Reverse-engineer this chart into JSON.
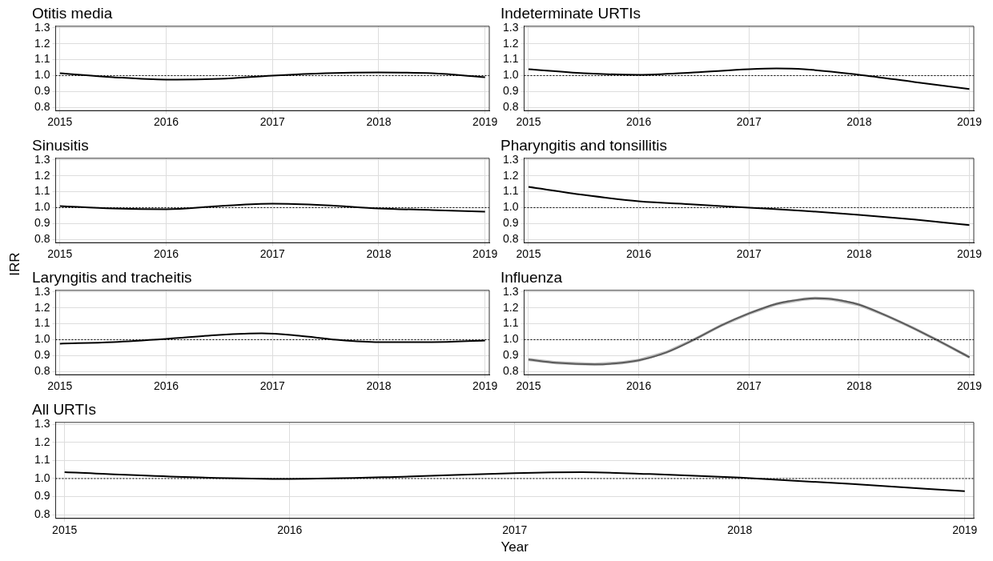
{
  "chart_data": [
    {
      "type": "line",
      "title": "Otitis media",
      "xlim": [
        2014.96,
        2019.04
      ],
      "ylim": [
        0.78,
        1.31
      ],
      "xticks": [
        2015,
        2016,
        2017,
        2018,
        2019
      ],
      "yticks": [
        {
          "value": 0.8,
          "label": "0.8"
        },
        {
          "value": 0.9,
          "label": "0.9"
        },
        {
          "value": 1.0,
          "label": "1.0"
        },
        {
          "value": 1.1,
          "label": "1.1"
        },
        {
          "value": 1.2,
          "label": "1.2"
        },
        {
          "value": 1.3,
          "label": "1.3"
        }
      ],
      "grid": true,
      "ref_lines": [
        {
          "axis": "y",
          "value": 1.0,
          "line_style": "dotted"
        }
      ],
      "series": [
        {
          "color": "#000000",
          "x": [
            2015,
            2015.5,
            2016,
            2016.5,
            2017,
            2017.5,
            2018,
            2018.5,
            2019
          ],
          "values": [
            1.015,
            0.99,
            0.975,
            0.98,
            1.0,
            1.015,
            1.02,
            1.015,
            0.99
          ]
        }
      ]
    },
    {
      "type": "line",
      "title": "Indeterminate URTIs",
      "xlim": [
        2014.96,
        2019.04
      ],
      "ylim": [
        0.78,
        1.31
      ],
      "xticks": [
        2015,
        2016,
        2017,
        2018,
        2019
      ],
      "yticks": [
        {
          "value": 0.8,
          "label": "0.8"
        },
        {
          "value": 0.9,
          "label": "0.9"
        },
        {
          "value": 1.0,
          "label": "1.0"
        },
        {
          "value": 1.1,
          "label": "1.1"
        },
        {
          "value": 1.2,
          "label": "1.2"
        },
        {
          "value": 1.3,
          "label": "1.3"
        }
      ],
      "grid": true,
      "ref_lines": [
        {
          "axis": "y",
          "value": 1.0,
          "line_style": "dotted"
        }
      ],
      "series": [
        {
          "color": "#000000",
          "x": [
            2015,
            2015.5,
            2016,
            2016.5,
            2017,
            2017.25,
            2017.5,
            2018,
            2018.5,
            2019
          ],
          "values": [
            1.04,
            1.015,
            1.005,
            1.02,
            1.04,
            1.045,
            1.04,
            1.005,
            0.96,
            0.915
          ]
        }
      ]
    },
    {
      "type": "line",
      "title": "Sinusitis",
      "ylabel": "IRR",
      "xlim": [
        2014.96,
        2019.04
      ],
      "ylim": [
        0.78,
        1.31
      ],
      "xticks": [
        2015,
        2016,
        2017,
        2018,
        2019
      ],
      "yticks": [
        {
          "value": 0.8,
          "label": "0.8"
        },
        {
          "value": 0.9,
          "label": "0.9"
        },
        {
          "value": 1.0,
          "label": "1.0"
        },
        {
          "value": 1.1,
          "label": "1.1"
        },
        {
          "value": 1.2,
          "label": "1.2"
        },
        {
          "value": 1.3,
          "label": "1.3"
        }
      ],
      "grid": true,
      "ref_lines": [
        {
          "axis": "y",
          "value": 1.0,
          "line_style": "dotted"
        }
      ],
      "series": [
        {
          "color": "#000000",
          "x": [
            2015,
            2015.5,
            2016,
            2016.5,
            2017,
            2017.5,
            2018,
            2018.5,
            2019
          ],
          "values": [
            1.01,
            0.995,
            0.99,
            1.01,
            1.025,
            1.015,
            0.995,
            0.985,
            0.975
          ]
        }
      ]
    },
    {
      "type": "line",
      "title": "Pharyngitis and tonsillitis",
      "xlim": [
        2014.96,
        2019.04
      ],
      "ylim": [
        0.78,
        1.31
      ],
      "xticks": [
        2015,
        2016,
        2017,
        2018,
        2019
      ],
      "yticks": [
        {
          "value": 0.8,
          "label": "0.8"
        },
        {
          "value": 0.9,
          "label": "0.9"
        },
        {
          "value": 1.0,
          "label": "1.0"
        },
        {
          "value": 1.1,
          "label": "1.1"
        },
        {
          "value": 1.2,
          "label": "1.2"
        },
        {
          "value": 1.3,
          "label": "1.3"
        }
      ],
      "grid": true,
      "ref_lines": [
        {
          "axis": "y",
          "value": 1.0,
          "line_style": "dotted"
        }
      ],
      "series": [
        {
          "color": "#000000",
          "x": [
            2015,
            2015.5,
            2016,
            2016.5,
            2017,
            2017.5,
            2018,
            2018.5,
            2019
          ],
          "values": [
            1.13,
            1.08,
            1.04,
            1.02,
            1.0,
            0.98,
            0.955,
            0.925,
            0.89
          ]
        }
      ]
    },
    {
      "type": "line",
      "title": "Laryngitis and tracheitis",
      "xlim": [
        2014.96,
        2019.04
      ],
      "ylim": [
        0.78,
        1.31
      ],
      "xticks": [
        2015,
        2016,
        2017,
        2018,
        2019
      ],
      "yticks": [
        {
          "value": 0.8,
          "label": "0.8"
        },
        {
          "value": 0.9,
          "label": "0.9"
        },
        {
          "value": 1.0,
          "label": "1.0"
        },
        {
          "value": 1.1,
          "label": "1.1"
        },
        {
          "value": 1.2,
          "label": "1.2"
        },
        {
          "value": 1.3,
          "label": "1.3"
        }
      ],
      "grid": true,
      "ref_lines": [
        {
          "axis": "y",
          "value": 1.0,
          "line_style": "dotted"
        }
      ],
      "series": [
        {
          "color": "#000000",
          "x": [
            2015,
            2015.5,
            2016,
            2016.5,
            2016.9,
            2017.25,
            2017.6,
            2018,
            2018.5,
            2019
          ],
          "values": [
            0.975,
            0.985,
            1.005,
            1.03,
            1.04,
            1.025,
            1.0,
            0.985,
            0.985,
            0.995
          ]
        }
      ]
    },
    {
      "type": "line",
      "title": "Influenza",
      "xlim": [
        2014.96,
        2019.04
      ],
      "ylim": [
        0.78,
        1.31
      ],
      "xticks": [
        2015,
        2016,
        2017,
        2018,
        2019
      ],
      "yticks": [
        {
          "value": 0.8,
          "label": "0.8"
        },
        {
          "value": 0.9,
          "label": "0.9"
        },
        {
          "value": 1.0,
          "label": "1.0"
        },
        {
          "value": 1.1,
          "label": "1.1"
        },
        {
          "value": 1.2,
          "label": "1.2"
        },
        {
          "value": 1.3,
          "label": "1.3"
        }
      ],
      "grid": true,
      "ref_lines": [
        {
          "axis": "y",
          "value": 1.0,
          "line_style": "dotted"
        }
      ],
      "series": [
        {
          "color": "#000000",
          "x": [
            2015,
            2015.25,
            2015.6,
            2015.85,
            2016,
            2016.25,
            2016.5,
            2016.75,
            2017,
            2017.25,
            2017.5,
            2017.6,
            2017.75,
            2018,
            2018.25,
            2018.5,
            2018.7,
            2019
          ],
          "values": [
            0.875,
            0.855,
            0.845,
            0.855,
            0.87,
            0.92,
            1.0,
            1.09,
            1.165,
            1.225,
            1.255,
            1.26,
            1.255,
            1.22,
            1.15,
            1.07,
            1.0,
            0.89
          ],
          "lower": [
            0.865,
            0.845,
            0.835,
            0.845,
            0.86,
            0.91,
            0.99,
            1.08,
            1.155,
            1.215,
            1.245,
            1.25,
            1.245,
            1.21,
            1.14,
            1.06,
            0.99,
            0.88
          ],
          "upper": [
            0.885,
            0.865,
            0.855,
            0.865,
            0.88,
            0.93,
            1.01,
            1.1,
            1.175,
            1.235,
            1.265,
            1.27,
            1.265,
            1.23,
            1.16,
            1.08,
            1.01,
            0.9
          ]
        }
      ]
    },
    {
      "type": "line",
      "title": "All URTIs",
      "xlabel": "Year",
      "xlim": [
        2014.96,
        2019.04
      ],
      "ylim": [
        0.78,
        1.31
      ],
      "xticks": [
        2015,
        2016,
        2017,
        2018,
        2019
      ],
      "yticks": [
        {
          "value": 0.8,
          "label": "0.8"
        },
        {
          "value": 0.9,
          "label": "0.9"
        },
        {
          "value": 1.0,
          "label": "1.0"
        },
        {
          "value": 1.1,
          "label": "1.1"
        },
        {
          "value": 1.2,
          "label": "1.2"
        },
        {
          "value": 1.3,
          "label": "1.3"
        }
      ],
      "grid": true,
      "ref_lines": [
        {
          "axis": "y",
          "value": 1.0,
          "line_style": "dotted"
        }
      ],
      "series": [
        {
          "color": "#000000",
          "x": [
            2015,
            2015.5,
            2016,
            2016.5,
            2017,
            2017.3,
            2017.6,
            2018,
            2018.5,
            2019
          ],
          "values": [
            1.035,
            1.01,
            0.998,
            1.01,
            1.03,
            1.035,
            1.025,
            1.005,
            0.97,
            0.93
          ]
        }
      ]
    }
  ]
}
